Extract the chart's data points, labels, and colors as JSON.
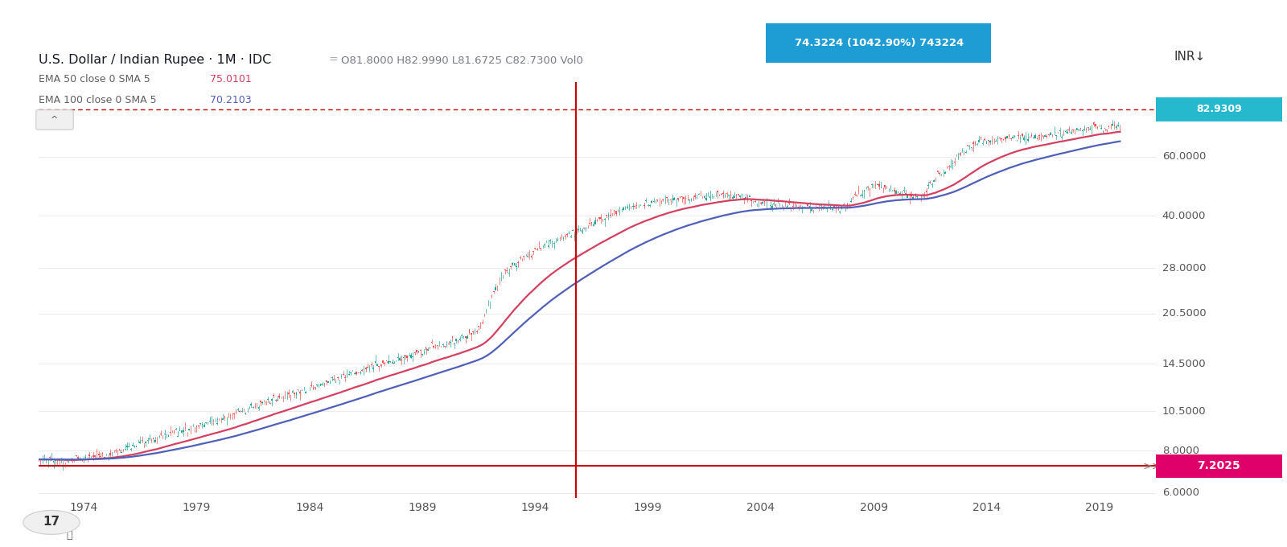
{
  "title": "U.S. Dollar / Indian Rupee · 1M · IDC",
  "ohlc_label": "O81.8000 H82.9990 L81.6725 C82.7300 Vol0",
  "price_label": "74.3224 (1042.90%) 743224",
  "ema50_label": "EMA 50 close 0 SMA 5",
  "ema50_value": "75.0101",
  "ema100_label": "EMA 100 close 0 SMA 5",
  "ema100_value": "70.2103",
  "inr_label": "INR↓",
  "current_price": "7.2025",
  "current_price_top": "82.9309",
  "bg_color": "#ffffff",
  "chart_bg": "#ffffff",
  "ema50_color": "#d44060",
  "ema100_color": "#5060b8",
  "vline_color": "#cc0000",
  "hline_bottom_color": "#cc0000",
  "hline_top_color": "#cc0000",
  "price_bg_color": "#1e9cd4",
  "current_price_bg": "#e0006a",
  "ytick_vals": [
    6.0,
    8.0,
    10.5,
    14.5,
    20.5,
    28.0,
    40.0,
    60.0
  ],
  "ytick_labels": [
    "6.0000",
    "8.0000",
    "10.5000",
    "14.5000",
    "20.5000",
    "28.0000",
    "40.0000",
    "60.0000"
  ],
  "xticks": [
    1974,
    1979,
    1984,
    1989,
    1994,
    1999,
    2004,
    2009,
    2014,
    2019
  ],
  "vline_year": 1995.8,
  "ymin": 5.8,
  "ymax": 100.0,
  "xmin": 1972.0,
  "xmax": 2021.5,
  "noise_seed": 42
}
